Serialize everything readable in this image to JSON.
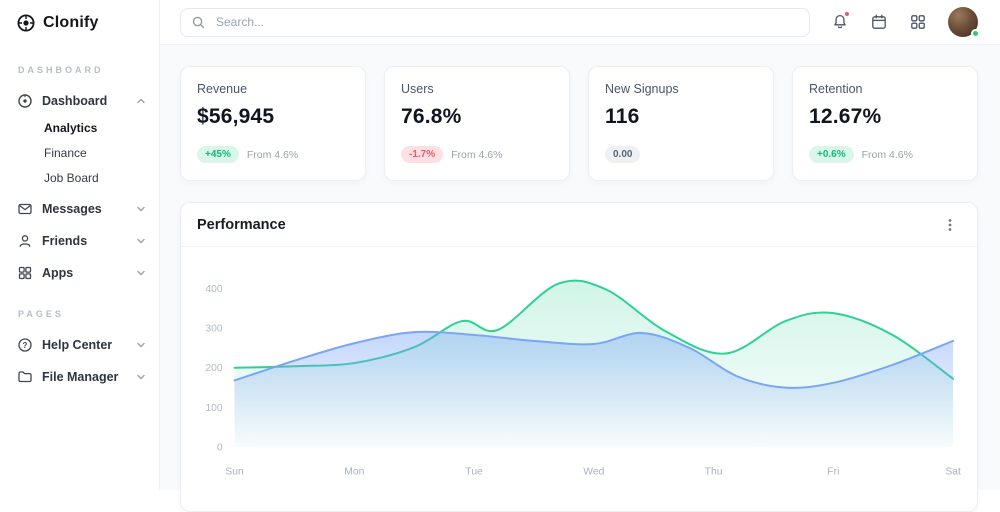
{
  "brand": {
    "name": "Clonify"
  },
  "header": {
    "search_placeholder": "Search...",
    "icons": [
      "bell-icon",
      "calendar-icon",
      "apps-grid-icon",
      "avatar"
    ]
  },
  "sidebar": {
    "sections": [
      {
        "label": "DASHBOARD",
        "items": [
          {
            "label": "Dashboard",
            "expanded": true,
            "children": [
              "Analytics",
              "Finance",
              "Job Board"
            ]
          },
          {
            "label": "Messages",
            "expanded": false
          },
          {
            "label": "Friends",
            "expanded": false
          },
          {
            "label": "Apps",
            "expanded": false
          }
        ]
      },
      {
        "label": "PAGES",
        "items": [
          {
            "label": "Help Center",
            "expanded": false
          },
          {
            "label": "File Manager",
            "expanded": false
          }
        ]
      }
    ]
  },
  "stats": [
    {
      "title": "Revenue",
      "value": "$56,945",
      "badge": "+45%",
      "badge_type": "positive",
      "note": "From 4.6%"
    },
    {
      "title": "Users",
      "value": "76.8%",
      "badge": "-1.7%",
      "badge_type": "negative",
      "note": "From 4.6%"
    },
    {
      "title": "New Signups",
      "value": "116",
      "badge": "0.00",
      "badge_type": "neutral",
      "note": ""
    },
    {
      "title": "Retention",
      "value": "12.67%",
      "badge": "+0.6%",
      "badge_type": "positive",
      "note": "From 4.6%"
    }
  ],
  "performance": {
    "title": "Performance"
  },
  "colors": {
    "positive": "#17b583",
    "negative": "#ef5a6f",
    "neutral": "#5b6470",
    "notification_dot": "#f4516c",
    "online_dot": "#2ecc71",
    "series_green": "#2ed095",
    "series_blue": "#7aa5f5"
  },
  "chart_data": {
    "type": "area",
    "title": "Performance",
    "grid": false,
    "legend": "none",
    "x_axis": {
      "labels": [
        "Sun",
        "Mon",
        "Tue",
        "Wed",
        "Thu",
        "Fri",
        "Sat"
      ],
      "range": [
        0,
        6
      ]
    },
    "y_axis": {
      "ticks": [
        0,
        100,
        200,
        300,
        400
      ],
      "range": [
        0,
        450
      ]
    },
    "series": [
      {
        "name": "series-green",
        "color": "#2ed095",
        "fill_opacity": 0.22,
        "x": [
          0,
          0.5,
          1,
          1.5,
          1.9,
          2.2,
          2.7,
          3.1,
          3.6,
          4.1,
          4.6,
          5.0,
          5.5,
          6
        ],
        "values": [
          200,
          204,
          212,
          252,
          318,
          296,
          412,
          398,
          292,
          236,
          318,
          338,
          282,
          172
        ]
      },
      {
        "name": "series-blue",
        "color": "#7aa5f5",
        "fill_opacity": 0.45,
        "x": [
          0,
          0.5,
          1,
          1.5,
          2,
          2.5,
          3,
          3.4,
          3.8,
          4.2,
          4.6,
          5.0,
          5.5,
          6
        ],
        "values": [
          168,
          218,
          262,
          290,
          283,
          268,
          260,
          288,
          250,
          178,
          150,
          162,
          208,
          268
        ]
      }
    ]
  }
}
